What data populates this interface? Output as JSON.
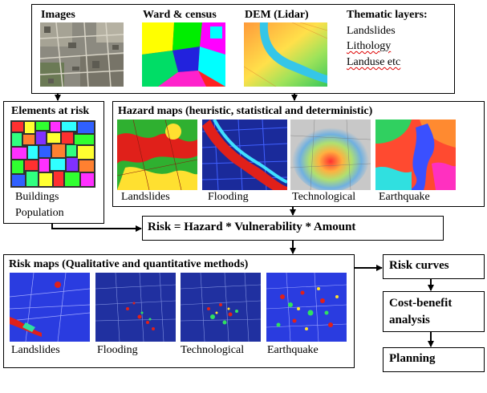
{
  "inputs": {
    "images_title": "Images",
    "ward_title": "Ward & census",
    "dem_title": "DEM (Lidar)",
    "thematic_title": "Thematic layers:",
    "thematic_items": [
      "Landslides",
      "Lithology",
      "Landuse etc"
    ]
  },
  "elements": {
    "title": "Elements at risk",
    "items": [
      "Buildings",
      "Population"
    ]
  },
  "hazard": {
    "title": "Hazard maps (heuristic, statistical and deterministic)",
    "labels": [
      "Landslides",
      "Flooding",
      "Technological",
      "Earthquake"
    ]
  },
  "risk_formula": "Risk = Hazard * Vulnerability * Amount",
  "risk_maps": {
    "title": "Risk maps (Qualitative and quantitative methods)",
    "labels": [
      "Landslides",
      "Flooding",
      "Technological",
      "Earthquake"
    ]
  },
  "right_chain": {
    "risk_curves": "Risk curves",
    "cost_benefit": "Cost-benefit analysis",
    "planning": "Planning"
  },
  "colors": {
    "arrow": "#000000",
    "hazard_red": "#e0201a",
    "map_blue": "#2a3ce0"
  }
}
